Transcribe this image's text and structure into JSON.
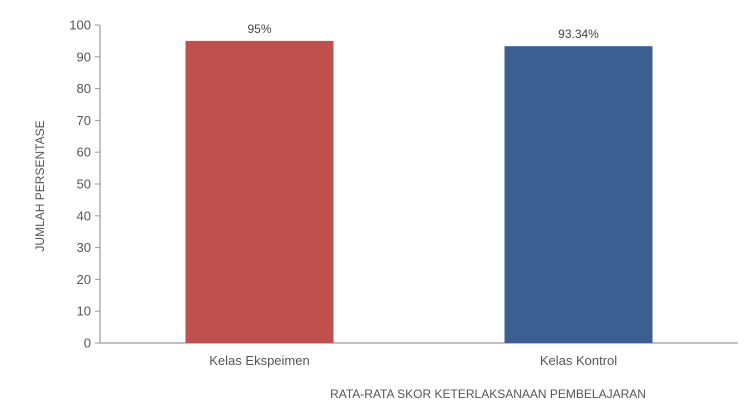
{
  "chart_data": {
    "type": "bar",
    "categories": [
      "Kelas Ekspeimen",
      "Kelas Kontrol"
    ],
    "values": [
      95,
      93.34
    ],
    "data_labels": [
      "95%",
      "93.34%"
    ],
    "colors": [
      "#c0504d",
      "#3b5f92"
    ],
    "xlabel": "RATA-RATA SKOR KETERLAKSANAAN PEMBELAJARAN",
    "ylabel": "JUMLAH PERSENTASE",
    "ylim": [
      0,
      100
    ],
    "yticks": [
      0,
      10,
      20,
      30,
      40,
      50,
      60,
      70,
      80,
      90,
      100
    ],
    "grid": false,
    "legend": "none"
  }
}
